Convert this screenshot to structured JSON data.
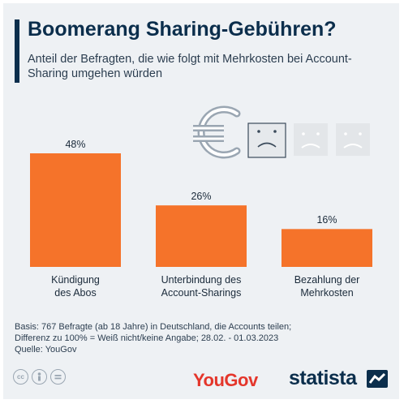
{
  "header": {
    "title": "Boomerang Sharing-Gebühren?",
    "subtitle": "Anteil der Befragten, die wie folgt mit Mehrkosten bei Account-Sharing umgehen würden"
  },
  "chart_data": {
    "type": "bar",
    "categories": [
      "Kündigung\ndes Abos",
      "Unterbindung des\nAccount-Sharings",
      "Bezahlung der\nMehrkosten"
    ],
    "values": [
      48,
      26,
      16
    ],
    "value_labels": [
      "48%",
      "26%",
      "16%"
    ],
    "ylim": [
      0,
      48
    ],
    "bar_color": "#f5732a",
    "grid": false
  },
  "footer": {
    "source_line1": "Basis: 767 Befragte (ab 18 Jahre) in Deutschland, die Accounts teilen;",
    "source_line2": "Differenz zu 100% = Weiß nicht/keine Angabe; 28.02. - 01.03.2023",
    "source_line3": "Quelle: YouGov",
    "yougov_logo": "YouGov",
    "statista_logo": "statista",
    "license_icons": [
      "cc-icon",
      "person-icon",
      "equals-icon"
    ]
  },
  "colors": {
    "accent": "#0b2e4c",
    "bar": "#f5732a",
    "yougov": "#e4362b"
  }
}
